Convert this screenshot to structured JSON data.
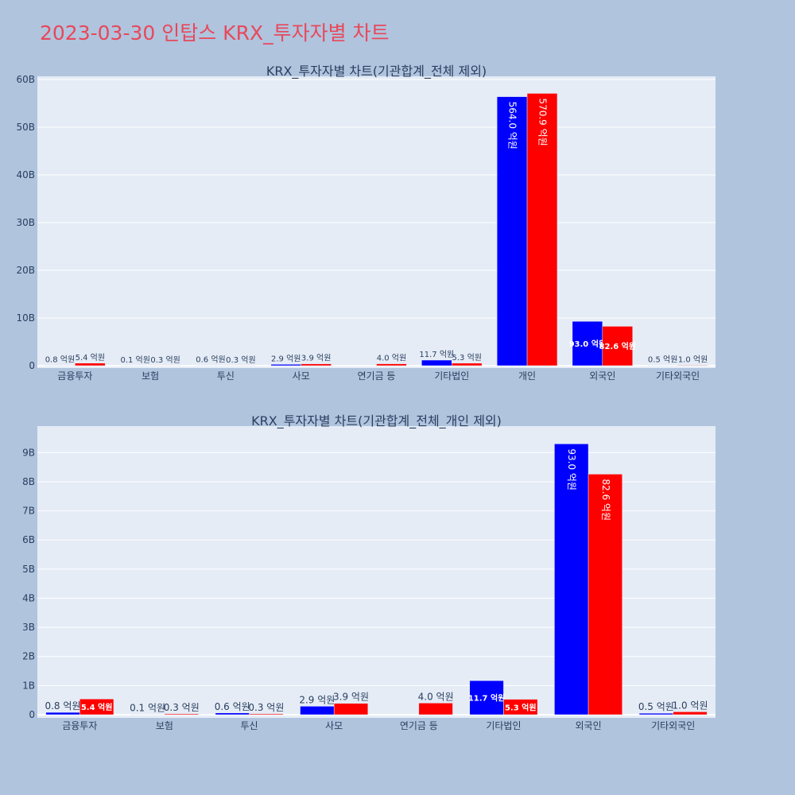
{
  "title": "2023-03-30 인탑스 KRX_투자자별 차트",
  "colors": {
    "series_a": "#0000ff",
    "series_b": "#ff0000",
    "plot_bg": "#e5ecf6",
    "page_bg": "#b0c4de"
  },
  "chart_data": [
    {
      "type": "bar",
      "title": "KRX_투자자별 차트(기관합계_전체 제외)",
      "categories": [
        "금융투자",
        "보험",
        "투신",
        "사모",
        "연기금 등",
        "기타법인",
        "개인",
        "외국인",
        "기타외국인"
      ],
      "series": [
        {
          "color": "#0000ff",
          "values": [
            0.08,
            0.01,
            0.06,
            0.29,
            0,
            1.17,
            56.4,
            9.3,
            0.05
          ],
          "labels": [
            "0.8 억원",
            "0.1 억원",
            "0.6 억원",
            "2.9 억원",
            "",
            "11.7 억원",
            "564.0 억원",
            "93.0 억원",
            "0.5 억원"
          ]
        },
        {
          "color": "#ff0000",
          "values": [
            0.54,
            0.03,
            0.03,
            0.39,
            0.4,
            0.53,
            57.09,
            8.26,
            0.1
          ],
          "labels": [
            "5.4 억원",
            "0.3 억원",
            "0.3 억원",
            "3.9 억원",
            "4.0 억원",
            "5.3 억원",
            "570.9 억원",
            "82.6 억원",
            "1.0 억원"
          ]
        }
      ],
      "ylim": [
        0,
        60
      ],
      "yticks": [
        0,
        10,
        20,
        30,
        40,
        50,
        60
      ],
      "ytick_labels": [
        "0",
        "10B",
        "20B",
        "30B",
        "40B",
        "50B",
        "60B"
      ],
      "grid": true
    },
    {
      "type": "bar",
      "title": "KRX_투자자별 차트(기관합계_전체_개인 제외)",
      "categories": [
        "금융투자",
        "보험",
        "투신",
        "사모",
        "연기금 등",
        "기타법인",
        "외국인",
        "기타외국인"
      ],
      "series": [
        {
          "color": "#0000ff",
          "values": [
            0.08,
            0.01,
            0.06,
            0.29,
            0,
            1.17,
            9.3,
            0.05
          ],
          "labels": [
            "0.8 억원",
            "0.1 억원",
            "0.6 억원",
            "2.9 억원",
            "",
            "11.7 억원",
            "93.0 억원",
            "0.5 억원"
          ]
        },
        {
          "color": "#ff0000",
          "values": [
            0.54,
            0.03,
            0.03,
            0.39,
            0.4,
            0.53,
            8.26,
            0.1
          ],
          "labels": [
            "5.4 억원",
            "0.3 억원",
            "0.3 억원",
            "3.9 억원",
            "4.0 억원",
            "5.3 억원",
            "82.6 억원",
            "1.0 억원"
          ]
        }
      ],
      "ylim": [
        0,
        9.8
      ],
      "yticks": [
        0,
        1,
        2,
        3,
        4,
        5,
        6,
        7,
        8,
        9
      ],
      "ytick_labels": [
        "0",
        "1B",
        "2B",
        "3B",
        "4B",
        "5B",
        "6B",
        "7B",
        "8B",
        "9B"
      ],
      "grid": true
    }
  ]
}
